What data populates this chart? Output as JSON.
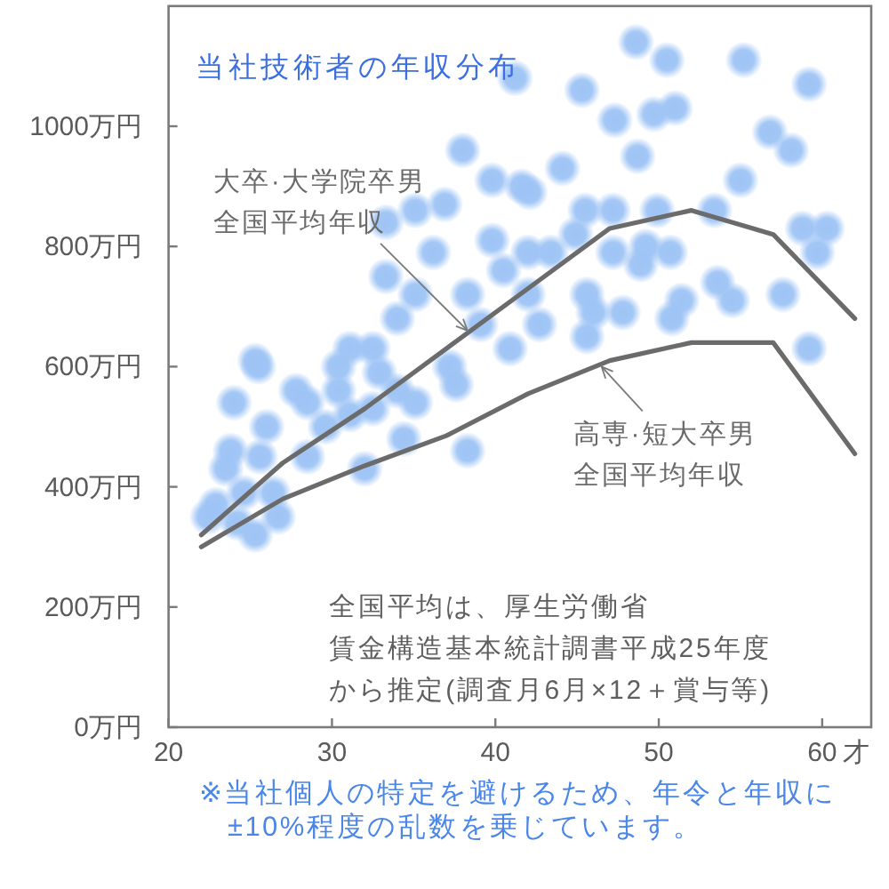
{
  "chart_data": {
    "type": "scatter",
    "title": "当社技術者の年収分布",
    "xlabel": "才",
    "xlim": [
      20,
      63
    ],
    "ylim": [
      0,
      1200
    ],
    "xticks": [
      20,
      30,
      40,
      50,
      60
    ],
    "yticks": [
      {
        "value": 0,
        "label": "0万円"
      },
      {
        "value": 200,
        "label": "200万円"
      },
      {
        "value": 400,
        "label": "400万円"
      },
      {
        "value": 600,
        "label": "600万円"
      },
      {
        "value": 800,
        "label": "800万円"
      },
      {
        "value": 1000,
        "label": "1000万円"
      }
    ],
    "series": [
      {
        "marker": "circle",
        "color": "#9ec4f5",
        "x": [
          48.6,
          50.5,
          55.2,
          59.2,
          45.3,
          47.3,
          49.7,
          51.0,
          48.7,
          44.1,
          56.8,
          58.1,
          55.0,
          42.1,
          45.5,
          47.2,
          49.9,
          53.4,
          58.8,
          60.3,
          59.7,
          47.2,
          49.2,
          50.7,
          48.9,
          45.6,
          46.0,
          47.8,
          45.6,
          51.4,
          50.8,
          53.6,
          54.5,
          57.6,
          59.2,
          42.7,
          42.0,
          43.4,
          44.9,
          38.0,
          41.2,
          39.8,
          35.1,
          36.9,
          41.6,
          33.3,
          36.2,
          33.3,
          35.1,
          34.0,
          38.3,
          40.5,
          42.0,
          39.8,
          31.1,
          32.5,
          25.3,
          30.4,
          40.9,
          39.1,
          27.8,
          28.5,
          30.4,
          31.1,
          32.5,
          34.0,
          35.1,
          32.9,
          37.6,
          37.2,
          24.0,
          26.0,
          23.8,
          23.5,
          25.6,
          28.5,
          22.9,
          22.4,
          24.2,
          25.3,
          26.7,
          26.4,
          24.6,
          32.0,
          34.4,
          38.3,
          29.6,
          25.5
        ],
        "values": [
          1140,
          1110,
          1110,
          1070,
          1060,
          1010,
          1020,
          1030,
          950,
          930,
          990,
          960,
          910,
          890,
          860,
          860,
          860,
          860,
          830,
          830,
          790,
          790,
          800,
          790,
          770,
          720,
          690,
          690,
          650,
          710,
          680,
          740,
          710,
          720,
          630,
          670,
          720,
          790,
          820,
          960,
          1080,
          910,
          860,
          870,
          900,
          840,
          790,
          750,
          720,
          680,
          720,
          760,
          790,
          810,
          630,
          630,
          610,
          600,
          630,
          670,
          560,
          540,
          560,
          520,
          530,
          560,
          540,
          590,
          570,
          600,
          540,
          500,
          460,
          430,
          450,
          450,
          370,
          350,
          340,
          320,
          350,
          390,
          390,
          430,
          480,
          460,
          500,
          600
        ]
      },
      {
        "type": "line",
        "color": "#6b6b6b",
        "x": [
          22,
          27,
          32,
          37,
          42,
          47,
          52,
          57,
          62
        ],
        "values": [
          320,
          440,
          530,
          630,
          730,
          830,
          860,
          820,
          680
        ]
      },
      {
        "type": "line",
        "color": "#6b6b6b",
        "x": [
          22,
          27,
          32,
          37,
          42,
          47,
          52,
          57,
          62
        ],
        "values": [
          300,
          380,
          435,
          485,
          555,
          610,
          640,
          640,
          455
        ]
      }
    ],
    "annotations": [
      {
        "text": "大卒·大学院卒男全国平均年収",
        "x": 38.3,
        "y": 660
      },
      {
        "text": "高専·短大卒男全国平均年収",
        "x": 46.5,
        "y": 600
      },
      "全国平均は、厚生労働省賃金構造基本統計調書平成25年度から推定(調査月6月×12＋賞与等)",
      "※当社個人の特定を避けるため、年令と年収に±10%程度の乱数を乗じています。"
    ]
  }
}
